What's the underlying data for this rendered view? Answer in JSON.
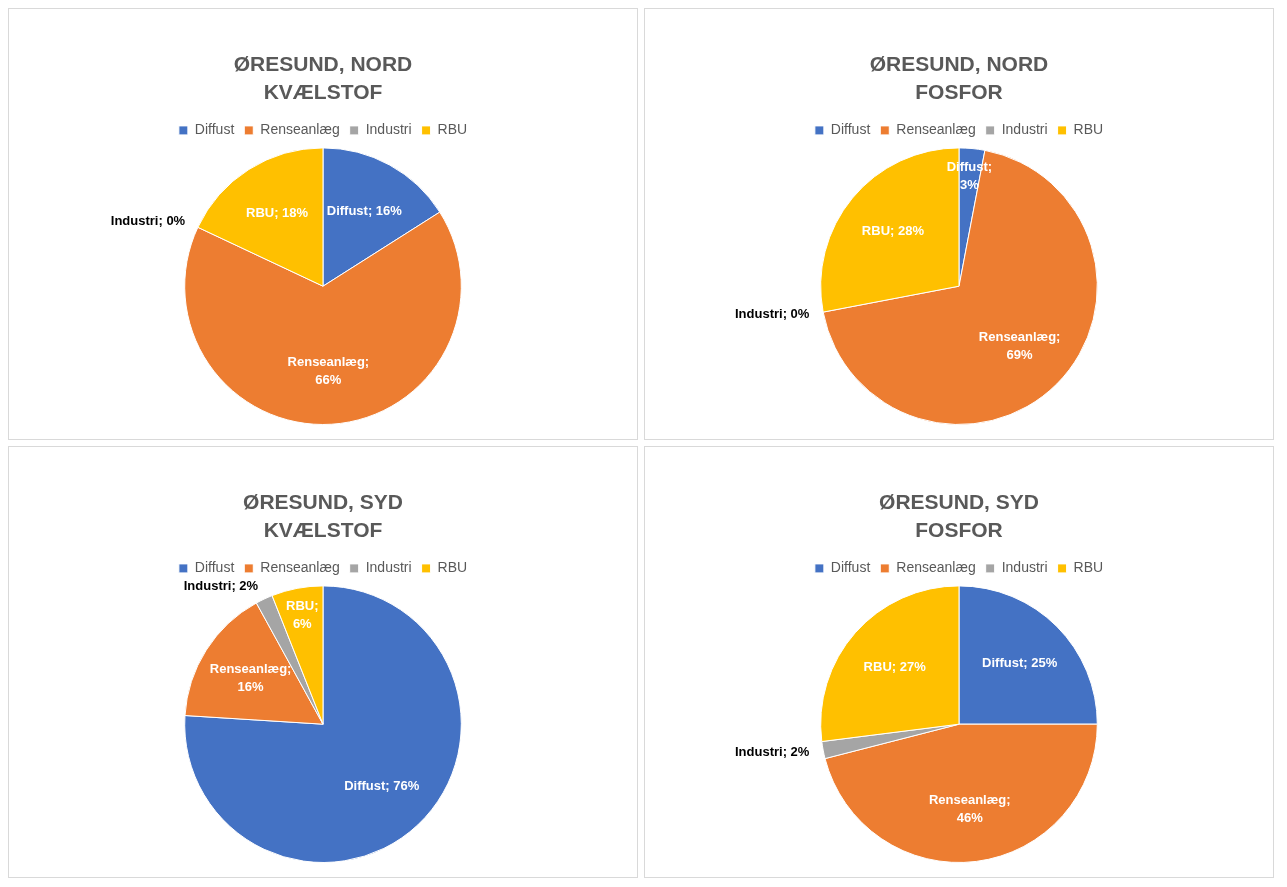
{
  "chart_data": [
    {
      "type": "pie",
      "title": "ØRESUND, NORD",
      "subtitle": "KVÆLSTOF",
      "categories": [
        "Diffust",
        "Renseanlæg",
        "Industri",
        "RBU"
      ],
      "values": [
        16,
        66,
        0,
        18
      ],
      "colors": [
        "#4472c4",
        "#ed7d31",
        "#a5a5a5",
        "#ffc000"
      ],
      "value_labels": [
        "Diffust; 16%",
        "Renseanlæg; 66%",
        "Industri; 0%",
        "RBU; 18%"
      ],
      "legend": "top"
    },
    {
      "type": "pie",
      "title": "ØRESUND, NORD",
      "subtitle": "FOSFOR",
      "categories": [
        "Diffust",
        "Renseanlæg",
        "Industri",
        "RBU"
      ],
      "values": [
        3,
        69,
        0,
        28
      ],
      "colors": [
        "#4472c4",
        "#ed7d31",
        "#a5a5a5",
        "#ffc000"
      ],
      "value_labels": [
        "Diffust; 3%",
        "Renseanlæg; 69%",
        "Industri; 0%",
        "RBU; 28%"
      ],
      "legend": "top"
    },
    {
      "type": "pie",
      "title": "ØRESUND, SYD",
      "subtitle": "KVÆLSTOF",
      "categories": [
        "Diffust",
        "Renseanlæg",
        "Industri",
        "RBU"
      ],
      "values": [
        76,
        16,
        2,
        6
      ],
      "colors": [
        "#4472c4",
        "#ed7d31",
        "#a5a5a5",
        "#ffc000"
      ],
      "value_labels": [
        "Diffust; 76%",
        "Renseanlæg; 16%",
        "Industri; 2%",
        "RBU; 6%"
      ],
      "legend": "top"
    },
    {
      "type": "pie",
      "title": "ØRESUND, SYD",
      "subtitle": "FOSFOR",
      "categories": [
        "Diffust",
        "Renseanlæg",
        "Industri",
        "RBU"
      ],
      "values": [
        25,
        46,
        2,
        27
      ],
      "colors": [
        "#4472c4",
        "#ed7d31",
        "#a5a5a5",
        "#ffc000"
      ],
      "value_labels": [
        "Diffust; 25%",
        "Renseanlæg; 46%",
        "Industri; 2%",
        "RBU; 27%"
      ],
      "legend": "top"
    }
  ]
}
